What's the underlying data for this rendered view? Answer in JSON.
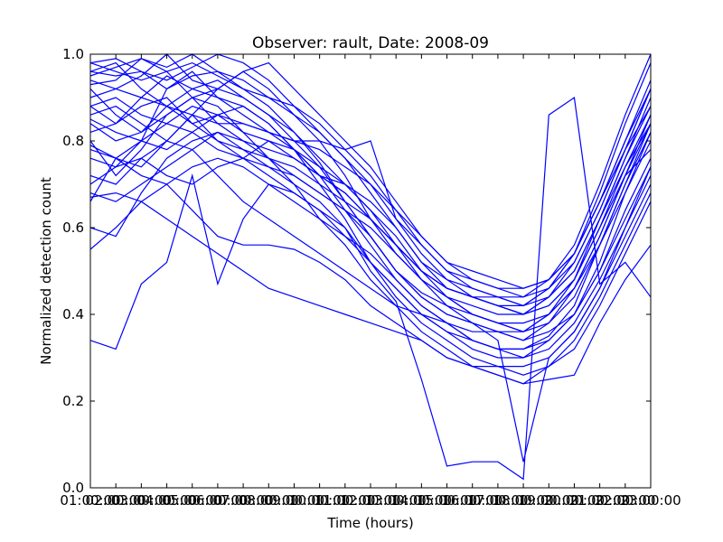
{
  "chart_data": {
    "type": "line",
    "title": "Observer: rault, Date: 2008-09",
    "xlabel": "Time (hours)",
    "ylabel": "Normalized detection count",
    "xlim": [
      1,
      23
    ],
    "ylim": [
      0.0,
      1.0
    ],
    "x_ticks": [
      {
        "value": 1,
        "label": "01:00:00"
      },
      {
        "value": 2,
        "label": "02:00:00"
      },
      {
        "value": 3,
        "label": "03:00:00"
      },
      {
        "value": 4,
        "label": "04:00:00"
      },
      {
        "value": 5,
        "label": "05:00:00"
      },
      {
        "value": 6,
        "label": "06:00:00"
      },
      {
        "value": 7,
        "label": "07:00:00"
      },
      {
        "value": 8,
        "label": "08:00:00"
      },
      {
        "value": 9,
        "label": "09:00:00"
      },
      {
        "value": 10,
        "label": "10:00:00"
      },
      {
        "value": 11,
        "label": "11:00:00"
      },
      {
        "value": 12,
        "label": "12:00:00"
      },
      {
        "value": 13,
        "label": "13:00:00"
      },
      {
        "value": 14,
        "label": "14:00:00"
      },
      {
        "value": 15,
        "label": "15:00:00"
      },
      {
        "value": 16,
        "label": "16:00:00"
      },
      {
        "value": 17,
        "label": "17:00:00"
      },
      {
        "value": 18,
        "label": "18:00:00"
      },
      {
        "value": 19,
        "label": "19:00:00"
      },
      {
        "value": 20,
        "label": "20:00:00"
      },
      {
        "value": 21,
        "label": "21:00:00"
      },
      {
        "value": 22,
        "label": "22:00:00"
      },
      {
        "value": 23,
        "label": "23:00:00"
      }
    ],
    "y_ticks": [
      {
        "value": 0.0,
        "label": "0.0"
      },
      {
        "value": 0.2,
        "label": "0.2"
      },
      {
        "value": 0.4,
        "label": "0.4"
      },
      {
        "value": 0.6,
        "label": "0.6"
      },
      {
        "value": 0.8,
        "label": "0.8"
      },
      {
        "value": 1.0,
        "label": "1.0"
      }
    ],
    "line_color": "#0000ff",
    "grid": false,
    "x": [
      1,
      2,
      3,
      4,
      5,
      6,
      7,
      8,
      9,
      10,
      11,
      12,
      13,
      14,
      15,
      16,
      17,
      18,
      19,
      20,
      21,
      22,
      23
    ],
    "series": [
      {
        "values": [
          0.34,
          0.32,
          0.47,
          0.52,
          0.72,
          0.47,
          0.62,
          0.7,
          0.68,
          0.64,
          0.6,
          0.5,
          0.43,
          0.25,
          0.05,
          0.06,
          0.06,
          0.02,
          0.86,
          0.9,
          0.47,
          0.52,
          0.44
        ]
      },
      {
        "values": [
          0.96,
          0.95,
          0.96,
          0.92,
          0.95,
          0.96,
          0.92,
          0.88,
          0.82,
          0.75,
          0.66,
          0.58,
          0.5,
          0.45,
          0.42,
          0.4,
          0.38,
          0.36,
          0.4,
          0.46,
          0.58,
          0.72,
          0.86
        ]
      },
      {
        "values": [
          0.93,
          0.94,
          0.99,
          0.97,
          1.0,
          0.96,
          0.94,
          0.9,
          0.86,
          0.8,
          0.72,
          0.62,
          0.54,
          0.48,
          0.44,
          0.42,
          0.4,
          0.4,
          0.44,
          0.52,
          0.64,
          0.78,
          0.92
        ]
      },
      {
        "values": [
          0.88,
          0.84,
          0.9,
          0.95,
          0.92,
          0.9,
          0.88,
          0.84,
          0.78,
          0.72,
          0.64,
          0.56,
          0.48,
          0.42,
          0.38,
          0.34,
          0.32,
          0.32,
          0.35,
          0.42,
          0.56,
          0.7,
          0.84
        ]
      },
      {
        "values": [
          0.66,
          0.76,
          0.8,
          0.92,
          0.96,
          0.9,
          0.86,
          0.82,
          0.78,
          0.7,
          0.62,
          0.52,
          0.46,
          0.4,
          0.36,
          0.32,
          0.3,
          0.3,
          0.34,
          0.4,
          0.52,
          0.68,
          0.82
        ]
      },
      {
        "values": [
          0.8,
          0.72,
          0.78,
          0.86,
          0.9,
          0.88,
          0.82,
          0.76,
          0.7,
          0.62,
          0.56,
          0.48,
          0.42,
          0.36,
          0.32,
          0.28,
          0.26,
          0.24,
          0.28,
          0.34,
          0.44,
          0.56,
          0.68
        ]
      },
      {
        "values": [
          0.55,
          0.6,
          0.66,
          0.7,
          0.64,
          0.58,
          0.56,
          0.56,
          0.55,
          0.52,
          0.48,
          0.42,
          0.38,
          0.34,
          0.3,
          0.28,
          0.26,
          0.24,
          0.25,
          0.26,
          0.38,
          0.48,
          0.56
        ]
      },
      {
        "values": [
          0.79,
          0.76,
          0.74,
          0.8,
          0.86,
          0.8,
          0.76,
          0.74,
          0.72,
          0.68,
          0.64,
          0.58,
          0.5,
          0.44,
          0.4,
          0.38,
          0.36,
          0.36,
          0.4,
          0.48,
          0.6,
          0.72,
          0.78
        ]
      },
      {
        "values": [
          0.98,
          0.96,
          0.94,
          0.96,
          0.98,
          0.95,
          0.92,
          0.9,
          0.88,
          0.84,
          0.78,
          0.72,
          0.64,
          0.56,
          0.5,
          0.46,
          0.44,
          0.42,
          0.46,
          0.54,
          0.68,
          0.84,
          0.98
        ]
      },
      {
        "values": [
          0.9,
          0.92,
          0.95,
          1.0,
          0.94,
          0.92,
          0.96,
          0.92,
          0.86,
          0.82,
          0.76,
          0.7,
          0.62,
          0.54,
          0.48,
          0.44,
          0.42,
          0.4,
          0.44,
          0.5,
          0.62,
          0.76,
          0.88
        ]
      },
      {
        "values": [
          0.6,
          0.58,
          0.68,
          0.76,
          0.8,
          0.82,
          0.78,
          0.74,
          0.7,
          0.66,
          0.6,
          0.52,
          0.44,
          0.38,
          0.34,
          0.3,
          0.28,
          0.26,
          0.28,
          0.32,
          0.42,
          0.54,
          0.66
        ]
      },
      {
        "values": [
          0.67,
          0.68,
          0.66,
          0.62,
          0.58,
          0.54,
          0.5,
          0.46,
          0.44,
          0.42,
          0.4,
          0.38,
          0.36,
          0.34,
          0.3,
          0.28,
          0.28,
          0.28,
          0.3,
          0.36,
          0.46,
          0.6,
          0.74
        ]
      },
      {
        "values": [
          0.96,
          0.98,
          0.92,
          0.88,
          0.84,
          0.86,
          0.82,
          0.8,
          0.78,
          0.74,
          0.7,
          0.64,
          0.58,
          0.5,
          0.46,
          0.44,
          0.42,
          0.4,
          0.42,
          0.48,
          0.62,
          0.76,
          0.9
        ]
      },
      {
        "values": [
          0.84,
          0.8,
          0.82,
          0.88,
          0.92,
          0.94,
          0.9,
          0.86,
          0.82,
          0.76,
          0.7,
          0.64,
          0.56,
          0.5,
          0.46,
          0.44,
          0.44,
          0.42,
          0.44,
          0.5,
          0.62,
          0.74,
          0.84
        ]
      },
      {
        "values": [
          0.72,
          0.7,
          0.76,
          0.8,
          0.78,
          0.72,
          0.66,
          0.62,
          0.58,
          0.54,
          0.5,
          0.46,
          0.42,
          0.4,
          0.38,
          0.36,
          0.36,
          0.34,
          0.36,
          0.4,
          0.5,
          0.62,
          0.74
        ]
      },
      {
        "values": [
          0.95,
          0.97,
          0.99,
          0.96,
          0.9,
          0.84,
          0.8,
          0.78,
          0.76,
          0.72,
          0.68,
          0.62,
          0.56,
          0.5,
          0.46,
          0.44,
          0.42,
          0.42,
          0.46,
          0.54,
          0.66,
          0.8,
          0.94
        ]
      },
      {
        "values": [
          0.86,
          0.88,
          0.84,
          0.8,
          0.86,
          0.92,
          0.9,
          0.86,
          0.8,
          0.74,
          0.66,
          0.58,
          0.5,
          0.44,
          0.4,
          0.38,
          0.36,
          0.34,
          0.38,
          0.44,
          0.56,
          0.7,
          0.82
        ]
      },
      {
        "values": [
          0.76,
          0.74,
          0.8,
          0.84,
          0.82,
          0.78,
          0.76,
          0.72,
          0.68,
          0.64,
          0.58,
          0.52,
          0.46,
          0.4,
          0.36,
          0.34,
          0.32,
          0.32,
          0.34,
          0.4,
          0.5,
          0.64,
          0.76
        ]
      },
      {
        "values": [
          0.98,
          0.99,
          0.96,
          0.94,
          0.97,
          1.0,
          0.98,
          0.94,
          0.88,
          0.82,
          0.76,
          0.68,
          0.6,
          0.52,
          0.48,
          0.46,
          0.44,
          0.44,
          0.48,
          0.56,
          0.7,
          0.86,
          1.0
        ]
      },
      {
        "values": [
          0.88,
          0.9,
          0.86,
          0.84,
          0.88,
          0.86,
          0.84,
          0.82,
          0.8,
          0.8,
          0.78,
          0.8,
          0.62,
          0.56,
          0.5,
          0.48,
          0.46,
          0.46,
          0.48,
          0.54,
          0.66,
          0.78,
          0.88
        ]
      },
      {
        "values": [
          0.82,
          0.84,
          0.88,
          0.9,
          0.84,
          0.8,
          0.78,
          0.76,
          0.74,
          0.7,
          0.66,
          0.62,
          0.56,
          0.5,
          0.44,
          0.4,
          0.38,
          0.36,
          0.38,
          0.46,
          0.58,
          0.72,
          0.84
        ]
      },
      {
        "values": [
          0.7,
          0.74,
          0.76,
          0.72,
          0.7,
          0.74,
          0.76,
          0.8,
          0.76,
          0.72,
          0.7,
          0.66,
          0.6,
          0.52,
          0.46,
          0.44,
          0.42,
          0.4,
          0.42,
          0.48,
          0.6,
          0.74,
          0.86
        ]
      },
      {
        "values": [
          0.92,
          0.86,
          0.82,
          0.86,
          0.9,
          0.92,
          0.96,
          0.98,
          0.92,
          0.86,
          0.8,
          0.74,
          0.66,
          0.58,
          0.52,
          0.48,
          0.46,
          0.44,
          0.46,
          0.52,
          0.64,
          0.78,
          0.92
        ]
      },
      {
        "values": [
          0.78,
          0.76,
          0.72,
          0.7,
          0.74,
          0.76,
          0.74,
          0.7,
          0.66,
          0.62,
          0.58,
          0.54,
          0.48,
          0.42,
          0.38,
          0.34,
          0.32,
          0.3,
          0.32,
          0.38,
          0.48,
          0.6,
          0.72
        ]
      },
      {
        "values": [
          0.94,
          0.92,
          0.9,
          0.88,
          0.86,
          0.84,
          0.84,
          0.82,
          0.8,
          0.78,
          0.74,
          0.7,
          0.64,
          0.58,
          0.52,
          0.5,
          0.48,
          0.46,
          0.48,
          0.54,
          0.66,
          0.8,
          0.92
        ]
      },
      {
        "values": [
          0.68,
          0.66,
          0.7,
          0.74,
          0.78,
          0.82,
          0.8,
          0.76,
          0.72,
          0.68,
          0.64,
          0.6,
          0.54,
          0.48,
          0.44,
          0.4,
          0.38,
          0.38,
          0.4,
          0.46,
          0.56,
          0.68,
          0.8
        ]
      },
      {
        "values": [
          0.85,
          0.82,
          0.8,
          0.78,
          0.82,
          0.86,
          0.88,
          0.84,
          0.78,
          0.72,
          0.68,
          0.62,
          0.56,
          0.48,
          0.42,
          0.38,
          0.34,
          0.06,
          0.3,
          0.36,
          0.46,
          0.58,
          0.7
        ]
      }
    ]
  }
}
